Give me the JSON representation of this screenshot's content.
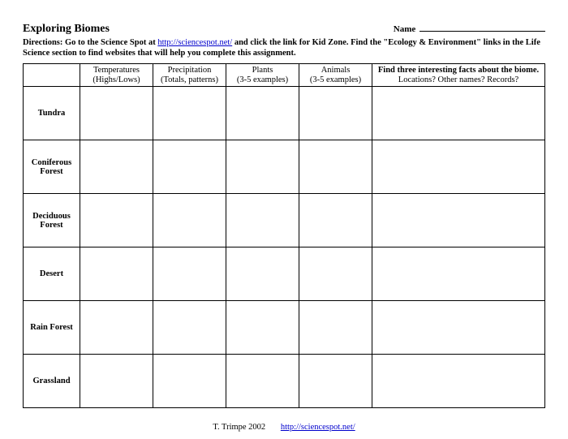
{
  "header": {
    "title": "Exploring Biomes",
    "name_label": "Name"
  },
  "directions": {
    "prefix": "Directions:  Go to the Science Spot at ",
    "link_text": "http://sciencespot.net/",
    "middle": " and click the link for Kid Zone.  Find the \"Ecology & Environment\" links in the Life Science section to find websites that will help you complete this assignment."
  },
  "columns": {
    "temperatures_l1": "Temperatures",
    "temperatures_l2": "(Highs/Lows)",
    "precipitation_l1": "Precipitation",
    "precipitation_l2": "(Totals, patterns)",
    "plants_l1": "Plants",
    "plants_l2": "(3-5 examples)",
    "animals_l1": "Animals",
    "animals_l2": "(3-5 examples)",
    "facts_l1": "Find three interesting facts about the biome.",
    "facts_l2": "Locations? Other names? Records?"
  },
  "rows": [
    "Tundra",
    "Coniferous Forest",
    "Deciduous Forest",
    "Desert",
    "Rain Forest",
    "Grassland"
  ],
  "footer": {
    "credit": "T. Trimpe 2002",
    "link_text": "http://sciencespot.net/"
  }
}
